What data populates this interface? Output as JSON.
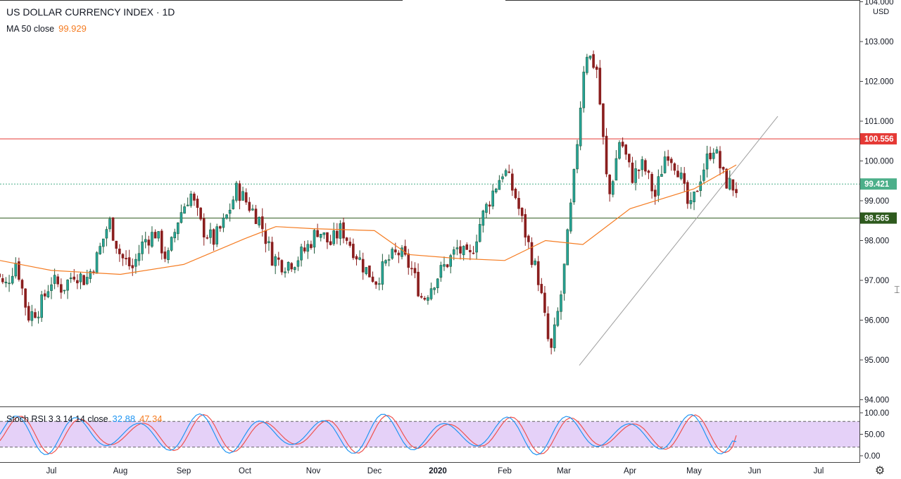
{
  "legend": {
    "title": "US DOLLAR CURRENCY INDEX · 1D",
    "ma_label": "MA 50 close",
    "ma_value": "99.929",
    "stoch_label": "Stoch RSI 3 3 14 14 close",
    "stoch_k_value": "32.88",
    "stoch_d_value": "47.34"
  },
  "colors": {
    "bull": "#26a69a",
    "bull_dark": "#1d5a3a",
    "bear": "#8a1e1e",
    "ma": "#f57c22",
    "resistance": "#e53935",
    "support": "#2e5a1e",
    "last_price": "#4caf8a",
    "stoch_k": "#2196f3",
    "stoch_d": "#ef5350",
    "stoch_band": "#e1c9f7",
    "trendline": "#9e9e9e"
  },
  "chart_data": [
    {
      "type": "candlestick",
      "title": "US DOLLAR CURRENCY INDEX · 1D",
      "currency": "USD",
      "ylim": [
        93.8,
        104.0
      ],
      "y_ticks": [
        "104.000",
        "103.000",
        "102.000",
        "101.000",
        "100.000",
        "99.000",
        "98.000",
        "97.000",
        "96.000",
        "95.000",
        "94.000"
      ],
      "x_ticks": [
        "Jul",
        "Aug",
        "Sep",
        "Oct",
        "Nov",
        "Dec",
        "2020",
        "Feb",
        "Mar",
        "Apr",
        "May",
        "Jun",
        "Jul"
      ],
      "price_path": [
        [
          "Jun",
          97.35
        ],
        [
          "Jun",
          96.8
        ],
        [
          "Jul",
          97.5
        ],
        [
          "Jul",
          96.1
        ],
        [
          "Jul",
          96.3
        ],
        [
          "Jul",
          97.0
        ],
        [
          "Jul",
          96.8
        ],
        [
          "Jul",
          97.2
        ],
        [
          "Jul",
          97.0
        ],
        [
          "Aug",
          97.6
        ],
        [
          "Aug",
          98.5
        ],
        [
          "Aug",
          97.6
        ],
        [
          "Aug",
          97.3
        ],
        [
          "Aug",
          98.0
        ],
        [
          "Aug",
          98.2
        ],
        [
          "Aug",
          97.5
        ],
        [
          "Sep",
          98.6
        ],
        [
          "Sep",
          99.2
        ],
        [
          "Sep",
          98.3
        ],
        [
          "Sep",
          98.0
        ],
        [
          "Sep",
          98.5
        ],
        [
          "Oct",
          99.3
        ],
        [
          "Oct",
          98.9
        ],
        [
          "Oct",
          98.5
        ],
        [
          "Oct",
          97.6
        ],
        [
          "Oct",
          97.4
        ],
        [
          "Nov",
          97.5
        ],
        [
          "Nov",
          97.8
        ],
        [
          "Nov",
          98.3
        ],
        [
          "Nov",
          97.9
        ],
        [
          "Nov",
          98.3
        ],
        [
          "Dec",
          97.8
        ],
        [
          "Dec",
          97.3
        ],
        [
          "Dec",
          97.0
        ],
        [
          "Dec",
          97.5
        ],
        [
          "Dec",
          97.7
        ],
        [
          "2020",
          97.3
        ],
        [
          "2020",
          96.5
        ],
        [
          "2020",
          97.0
        ],
        [
          "2020",
          97.4
        ],
        [
          "Feb",
          97.8
        ],
        [
          "Feb",
          97.5
        ],
        [
          "Feb",
          98.5
        ],
        [
          "Feb",
          99.2
        ],
        [
          "Feb",
          99.8
        ],
        [
          "Feb",
          99.1
        ],
        [
          "Mar",
          98.0
        ],
        [
          "Mar",
          97.0
        ],
        [
          "Mar",
          95.1
        ],
        [
          "Mar",
          96.8
        ],
        [
          "Mar",
          99.5
        ],
        [
          "Mar",
          102.8
        ],
        [
          "Mar",
          102.3
        ],
        [
          "Apr",
          99.0
        ],
        [
          "Apr",
          100.6
        ],
        [
          "Apr",
          99.6
        ],
        [
          "Apr",
          99.9
        ],
        [
          "Apr",
          99.1
        ],
        [
          "Apr",
          100.3
        ],
        [
          "Apr",
          99.8
        ],
        [
          "May",
          98.7
        ],
        [
          "May",
          99.7
        ],
        [
          "May",
          100.4
        ],
        [
          "May",
          99.5
        ],
        [
          "May",
          99.3
        ]
      ],
      "ma50_path": [
        [
          "Jun",
          97.5
        ],
        [
          "Jul",
          97.25
        ],
        [
          "Aug",
          97.15
        ],
        [
          "Sep",
          97.4
        ],
        [
          "Oct",
          98.05
        ],
        [
          "Oct",
          98.35
        ],
        [
          "Nov",
          98.3
        ],
        [
          "Dec",
          98.25
        ],
        [
          "2020",
          97.65
        ],
        [
          "2020",
          97.55
        ],
        [
          "Feb",
          97.5
        ],
        [
          "Mar",
          98.0
        ],
        [
          "Mar",
          97.9
        ],
        [
          "Apr",
          98.8
        ],
        [
          "May",
          99.3
        ],
        [
          "May",
          99.9
        ]
      ],
      "resistance": 100.556,
      "support": 98.565,
      "last_price": 99.421,
      "labels": {
        "resistance": "100.556",
        "last_price": "99.421",
        "support": "98.565"
      },
      "trendline": [
        [
          95.2,
          "Mar"
        ],
        [
          101.3,
          "Jun"
        ]
      ]
    },
    {
      "type": "line",
      "title": "Stoch RSI 3 3 14 14 close",
      "ylim": [
        0,
        100
      ],
      "y_ticks": [
        "100.00",
        "50.00",
        "0.00"
      ],
      "bands": [
        20,
        80
      ],
      "k_last": 32.88,
      "d_last": 47.34
    }
  ]
}
